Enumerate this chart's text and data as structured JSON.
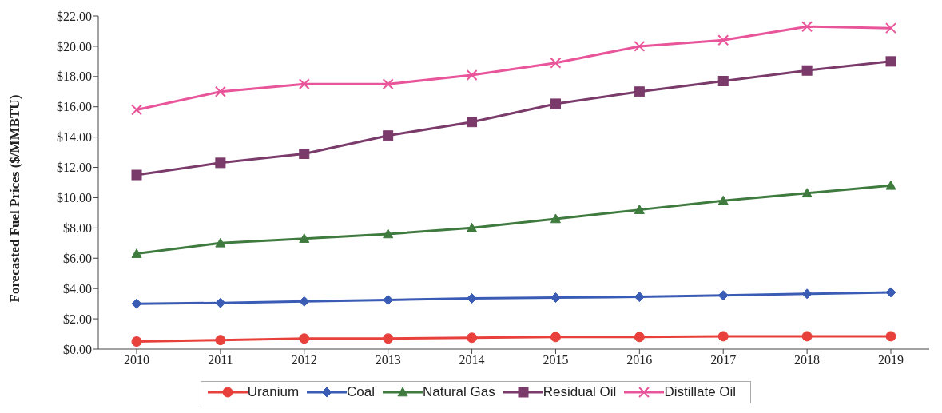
{
  "chart_data": {
    "type": "line",
    "ylabel": "Forecasted Fuel Prices ($/MMBTU)",
    "categories": [
      "2010",
      "2011",
      "2012",
      "2013",
      "2014",
      "2015",
      "2016",
      "2017",
      "2018",
      "2019"
    ],
    "series": [
      {
        "name": "Uranium",
        "color": "#e8413c",
        "marker": "circle",
        "values": [
          0.5,
          0.6,
          0.7,
          0.7,
          0.75,
          0.8,
          0.8,
          0.85,
          0.85,
          0.85
        ]
      },
      {
        "name": "Coal",
        "color": "#3a5cb5",
        "marker": "diamond",
        "values": [
          3.0,
          3.05,
          3.15,
          3.25,
          3.35,
          3.4,
          3.45,
          3.55,
          3.65,
          3.75
        ]
      },
      {
        "name": "Natural Gas",
        "color": "#3f7a3f",
        "marker": "triangle",
        "values": [
          6.3,
          7.0,
          7.3,
          7.6,
          8.0,
          8.6,
          9.2,
          9.8,
          10.3,
          10.8
        ]
      },
      {
        "name": "Residual Oil",
        "color": "#7a3a6a",
        "marker": "square",
        "values": [
          11.5,
          12.3,
          12.9,
          14.1,
          15.0,
          16.2,
          17.0,
          17.7,
          18.4,
          19.0
        ]
      },
      {
        "name": "Distillate Oil",
        "color": "#e8559a",
        "marker": "cross",
        "values": [
          15.8,
          17.0,
          17.5,
          17.5,
          18.1,
          18.9,
          20.0,
          20.4,
          21.3,
          21.2
        ]
      }
    ],
    "ylim": [
      0,
      22
    ],
    "yticks": [
      {
        "value": 0,
        "label": "$0.00"
      },
      {
        "value": 2,
        "label": "$2.00"
      },
      {
        "value": 4,
        "label": "$4.00"
      },
      {
        "value": 6,
        "label": "$6.00"
      },
      {
        "value": 8,
        "label": "$8.00"
      },
      {
        "value": 10,
        "label": "$10.00"
      },
      {
        "value": 12,
        "label": "$12.00"
      },
      {
        "value": 14,
        "label": "$14.00"
      },
      {
        "value": 16,
        "label": "$16.00"
      },
      {
        "value": 18,
        "label": "$18.00"
      },
      {
        "value": 20,
        "label": "$20.00"
      },
      {
        "value": 22,
        "label": "$22.00"
      }
    ],
    "grid": false,
    "legend": "bottom",
    "line_style": "solid"
  }
}
